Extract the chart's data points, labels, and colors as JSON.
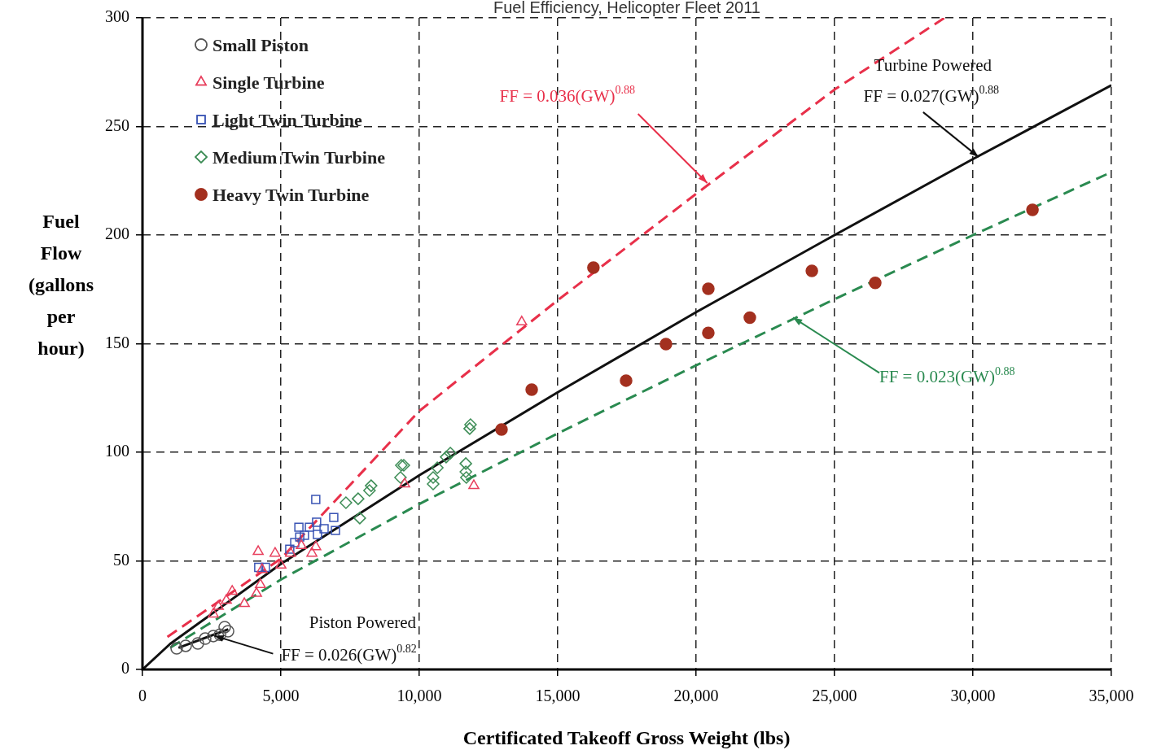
{
  "chart_data": {
    "type": "scatter",
    "title": "Fuel Efficiency, Helicopter Fleet 2011",
    "xlabel": "Certificated Takeoff Gross Weight (lbs)",
    "ylabel": "Fuel Flow (gallons per hour)",
    "xlim": [
      0,
      35000
    ],
    "ylim": [
      0,
      300
    ],
    "xticks": [
      0,
      {
        "value": 5000,
        "label": "5,000"
      },
      {
        "value": 10000,
        "label": "10,000"
      },
      {
        "value": 15000,
        "label": "15,000"
      },
      {
        "value": 20000,
        "label": "20,000"
      },
      {
        "value": 25000,
        "label": "25,000"
      },
      {
        "value": 30000,
        "label": "30,000"
      },
      {
        "value": 35000,
        "label": "35,000"
      }
    ],
    "yticks": [
      0,
      50,
      100,
      150,
      200,
      250,
      300
    ],
    "grid": true,
    "legend": "top left",
    "series": [
      {
        "name": "Small Piston",
        "marker": "circle",
        "color": "#555555",
        "x": [
          1235,
          1560,
          2000,
          2265,
          2560,
          2800,
          3090,
          2970
        ],
        "values": [
          9.7,
          10.9,
          12,
          14.2,
          15.4,
          16,
          17.6,
          19.5
        ]
      },
      {
        "name": "Single Turbine",
        "marker": "triangle",
        "color": "#e8405e",
        "x": [
          4180,
          4790,
          4320,
          5000,
          3240,
          3030,
          3680,
          2740,
          2560,
          4260,
          4120,
          5350,
          5740,
          6260,
          6120,
          13700,
          11970,
          9470
        ],
        "values": [
          54.3,
          53.5,
          46,
          48,
          36,
          31.8,
          30.3,
          29,
          25.5,
          39,
          35,
          53.5,
          57,
          56.5,
          53.5,
          160,
          84.6,
          85.4
        ]
      },
      {
        "name": "Light Twin Turbine",
        "marker": "square",
        "color": "#3b55b5",
        "x": [
          6260,
          4200,
          4440,
          5500,
          5680,
          6030,
          6290,
          5650,
          6560,
          6910,
          6970,
          6320,
          5850,
          5320
        ],
        "values": [
          78.3,
          47,
          47,
          58.4,
          61,
          65.5,
          67.8,
          65.5,
          64.8,
          70,
          64,
          62.2,
          61.8,
          55.4
        ]
      },
      {
        "name": "Medium Twin Turbine",
        "marker": "diamond",
        "color": "#3c8c55",
        "x": [
          7350,
          7790,
          8200,
          8260,
          7850,
          9350,
          9320,
          10500,
          10650,
          11120,
          10500,
          11680,
          11680,
          11700,
          11820,
          11850,
          9440,
          10970
        ],
        "values": [
          76.8,
          78.6,
          82.4,
          84.6,
          69.7,
          94,
          88.4,
          88.4,
          92.9,
          99.6,
          85.4,
          94.8,
          91,
          88.4,
          110.9,
          112.7,
          94,
          97.8
        ]
      },
      {
        "name": "Heavy Twin Turbine",
        "marker": "circle",
        "color": "#a3301f",
        "x": [
          12970,
          14060,
          16290,
          17470,
          18910,
          20440,
          20440,
          21940,
          24180,
          26470,
          32150
        ],
        "values": [
          110.5,
          128.8,
          185,
          133,
          149.8,
          175.3,
          155,
          162,
          183.5,
          178,
          211.6
        ]
      },
      {
        "type": "line",
        "marker": "none",
        "line_style": "dashed",
        "color": "#e8304a",
        "x": [
          900,
          5000,
          10000,
          15000,
          20000,
          25000,
          28970
        ],
        "values": [
          15,
          51,
          119,
          170,
          219,
          267,
          300
        ]
      },
      {
        "type": "line",
        "marker": "none",
        "line_style": "solid",
        "color": "#111111",
        "x": [
          0,
          1000,
          5000,
          10000,
          15000,
          20000,
          25000,
          30000,
          35000
        ],
        "values": [
          0,
          11.8,
          48.6,
          89.4,
          127.6,
          164.5,
          200,
          235,
          269
        ]
      },
      {
        "type": "line",
        "marker": "none",
        "line_style": "dashed",
        "color": "#2a8a50",
        "x": [
          1000,
          5000,
          10000,
          15000,
          20000,
          25000,
          30000,
          35000
        ],
        "values": [
          10,
          41.4,
          76.2,
          108.7,
          140,
          170.5,
          200,
          229
        ]
      },
      {
        "type": "line",
        "marker": "none",
        "line_style": "solid",
        "color": "#111111",
        "x": [
          1300,
          3100
        ],
        "values": [
          10,
          18.5
        ]
      }
    ],
    "annotations": [
      {
        "text": "FF = 0.036(GW)$^{0.88}$",
        "x": 20400,
        "y": 224
      },
      "Turbine Powered",
      {
        "text": "FF = 0.027(GW)$^{0.88}$",
        "x": 30200,
        "y": 236
      },
      {
        "text": "FF = 0.023(GW)$^{0.88}$",
        "x": 23500,
        "y": 162
      },
      "Piston Powered",
      {
        "text": "FF = 0.026(GW)$^{0.82}$",
        "x": 2600,
        "y": 15.5
      }
    ]
  }
}
